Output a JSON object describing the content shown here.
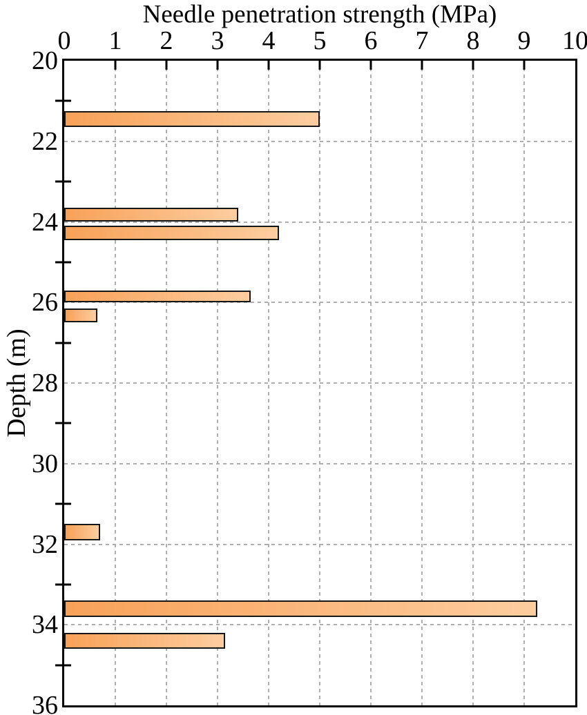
{
  "chart_data": {
    "type": "bar",
    "orientation": "horizontal",
    "title": "Needle penetration strength (MPa)",
    "xlabel": "Needle penetration strength (MPa)",
    "ylabel": "Depth (m)",
    "xlim": [
      0,
      10
    ],
    "ylim": [
      20,
      36
    ],
    "x_ticks": [
      0,
      1,
      2,
      3,
      4,
      5,
      6,
      7,
      8,
      9,
      10
    ],
    "x_gridlines": [
      1,
      2,
      3,
      4,
      5,
      6,
      7,
      8,
      9
    ],
    "y_tick_labels": [
      20,
      22,
      24,
      26,
      28,
      30,
      32,
      34,
      36
    ],
    "y_gridlines": [
      22,
      24,
      26,
      28,
      30,
      32,
      34
    ],
    "y_minor_ticks": [
      21,
      23,
      25,
      27,
      29,
      31,
      33,
      35
    ],
    "grid_style": "dashed",
    "legend": "none",
    "bars": [
      {
        "depth_top": 21.25,
        "depth_bottom": 21.65,
        "value": 5.0
      },
      {
        "depth_top": 23.65,
        "depth_bottom": 24.0,
        "value": 3.4
      },
      {
        "depth_top": 24.1,
        "depth_bottom": 24.45,
        "value": 4.2
      },
      {
        "depth_top": 25.7,
        "depth_bottom": 26.0,
        "value": 3.65
      },
      {
        "depth_top": 26.15,
        "depth_bottom": 26.5,
        "value": 0.65
      },
      {
        "depth_top": 31.5,
        "depth_bottom": 31.9,
        "value": 0.7
      },
      {
        "depth_top": 33.4,
        "depth_bottom": 33.8,
        "value": 9.25
      },
      {
        "depth_top": 34.2,
        "depth_bottom": 34.6,
        "value": 3.15
      }
    ],
    "colors": {
      "bar_gradient_left": "#F8A158",
      "bar_gradient_right": "#FDCD9F",
      "bar_border": "#161616",
      "grid": "#AEAEAE",
      "axis": "#000000",
      "text": "#000000",
      "background": "#FFFFFF"
    }
  }
}
